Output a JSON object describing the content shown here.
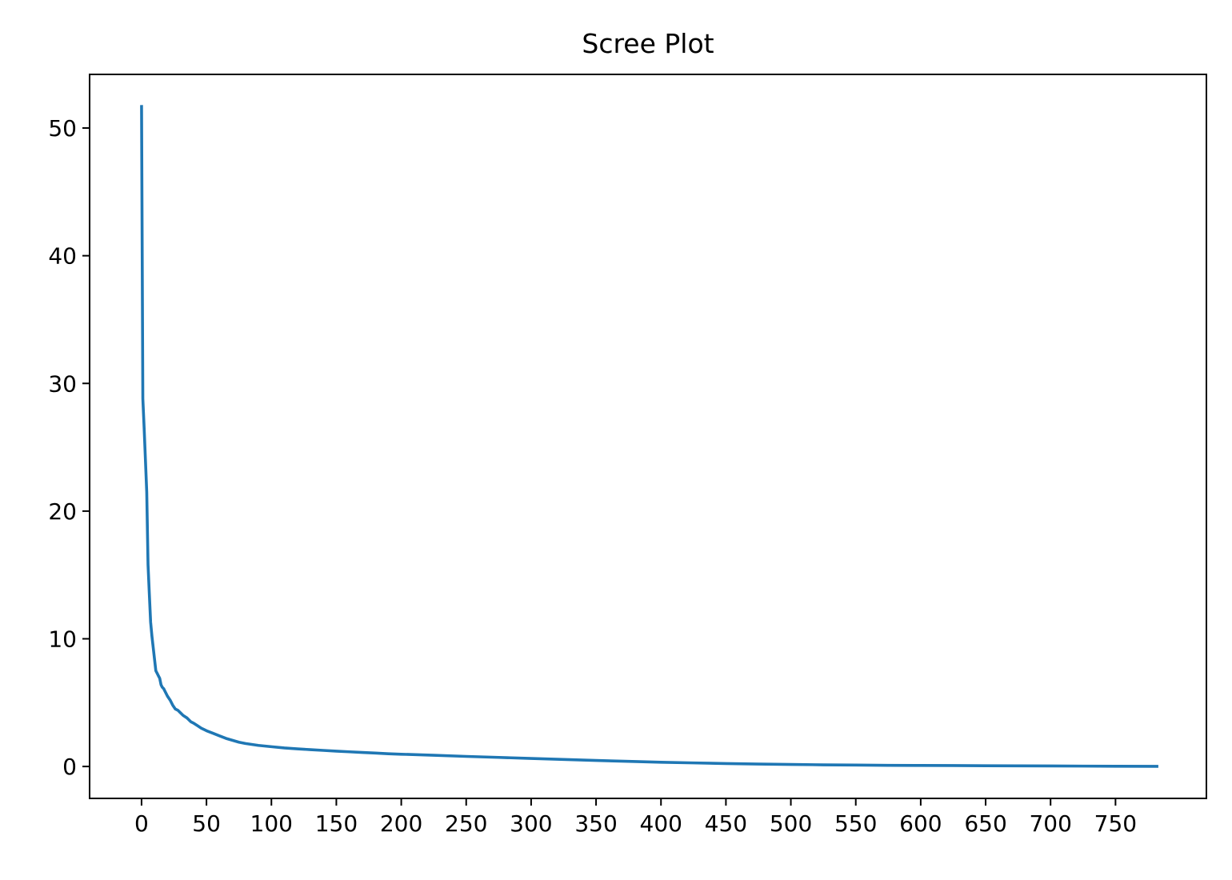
{
  "chart_data": {
    "type": "line",
    "title": "Scree Plot",
    "xlabel": "",
    "ylabel": "",
    "xlim": [
      -40,
      820
    ],
    "ylim": [
      -2.5,
      54.2
    ],
    "grid": false,
    "legend": "none",
    "x_ticks": [
      0,
      50,
      100,
      150,
      200,
      250,
      300,
      350,
      400,
      450,
      500,
      550,
      600,
      650,
      700,
      750
    ],
    "x_tick_labels": [
      "0",
      "50",
      "100",
      "150",
      "200",
      "250",
      "300",
      "350",
      "400",
      "450",
      "500",
      "550",
      "600",
      "650",
      "700",
      "750"
    ],
    "y_ticks": [
      0,
      10,
      20,
      30,
      40,
      50
    ],
    "y_tick_labels": [
      "0",
      "10",
      "20",
      "30",
      "40",
      "50"
    ],
    "series": [
      {
        "color": "#1f77b4",
        "x": [
          0,
          1,
          2,
          3,
          4,
          5,
          6,
          7,
          8,
          9,
          10,
          11,
          12,
          13,
          14,
          15,
          16,
          17,
          18,
          20,
          22,
          24,
          26,
          28,
          30,
          32,
          35,
          38,
          40,
          43,
          46,
          50,
          55,
          60,
          65,
          70,
          75,
          80,
          90,
          100,
          110,
          120,
          130,
          140,
          150,
          160,
          170,
          180,
          190,
          200,
          225,
          250,
          275,
          300,
          325,
          350,
          375,
          400,
          425,
          450,
          475,
          500,
          525,
          550,
          575,
          600,
          625,
          650,
          675,
          700,
          725,
          750,
          783
        ],
        "y": [
          51.8,
          28.8,
          26.5,
          24.0,
          21.5,
          15.8,
          13.5,
          11.3,
          10.2,
          9.3,
          8.4,
          7.5,
          7.3,
          7.1,
          6.9,
          6.4,
          6.2,
          6.1,
          5.9,
          5.5,
          5.2,
          4.8,
          4.5,
          4.4,
          4.2,
          4.0,
          3.8,
          3.5,
          3.4,
          3.2,
          3.0,
          2.8,
          2.6,
          2.4,
          2.2,
          2.05,
          1.9,
          1.8,
          1.65,
          1.55,
          1.45,
          1.38,
          1.32,
          1.26,
          1.2,
          1.15,
          1.1,
          1.05,
          1.0,
          0.96,
          0.88,
          0.79,
          0.71,
          0.63,
          0.55,
          0.47,
          0.4,
          0.33,
          0.28,
          0.23,
          0.19,
          0.16,
          0.13,
          0.11,
          0.09,
          0.08,
          0.07,
          0.06,
          0.05,
          0.04,
          0.03,
          0.02,
          0.01
        ]
      }
    ]
  }
}
